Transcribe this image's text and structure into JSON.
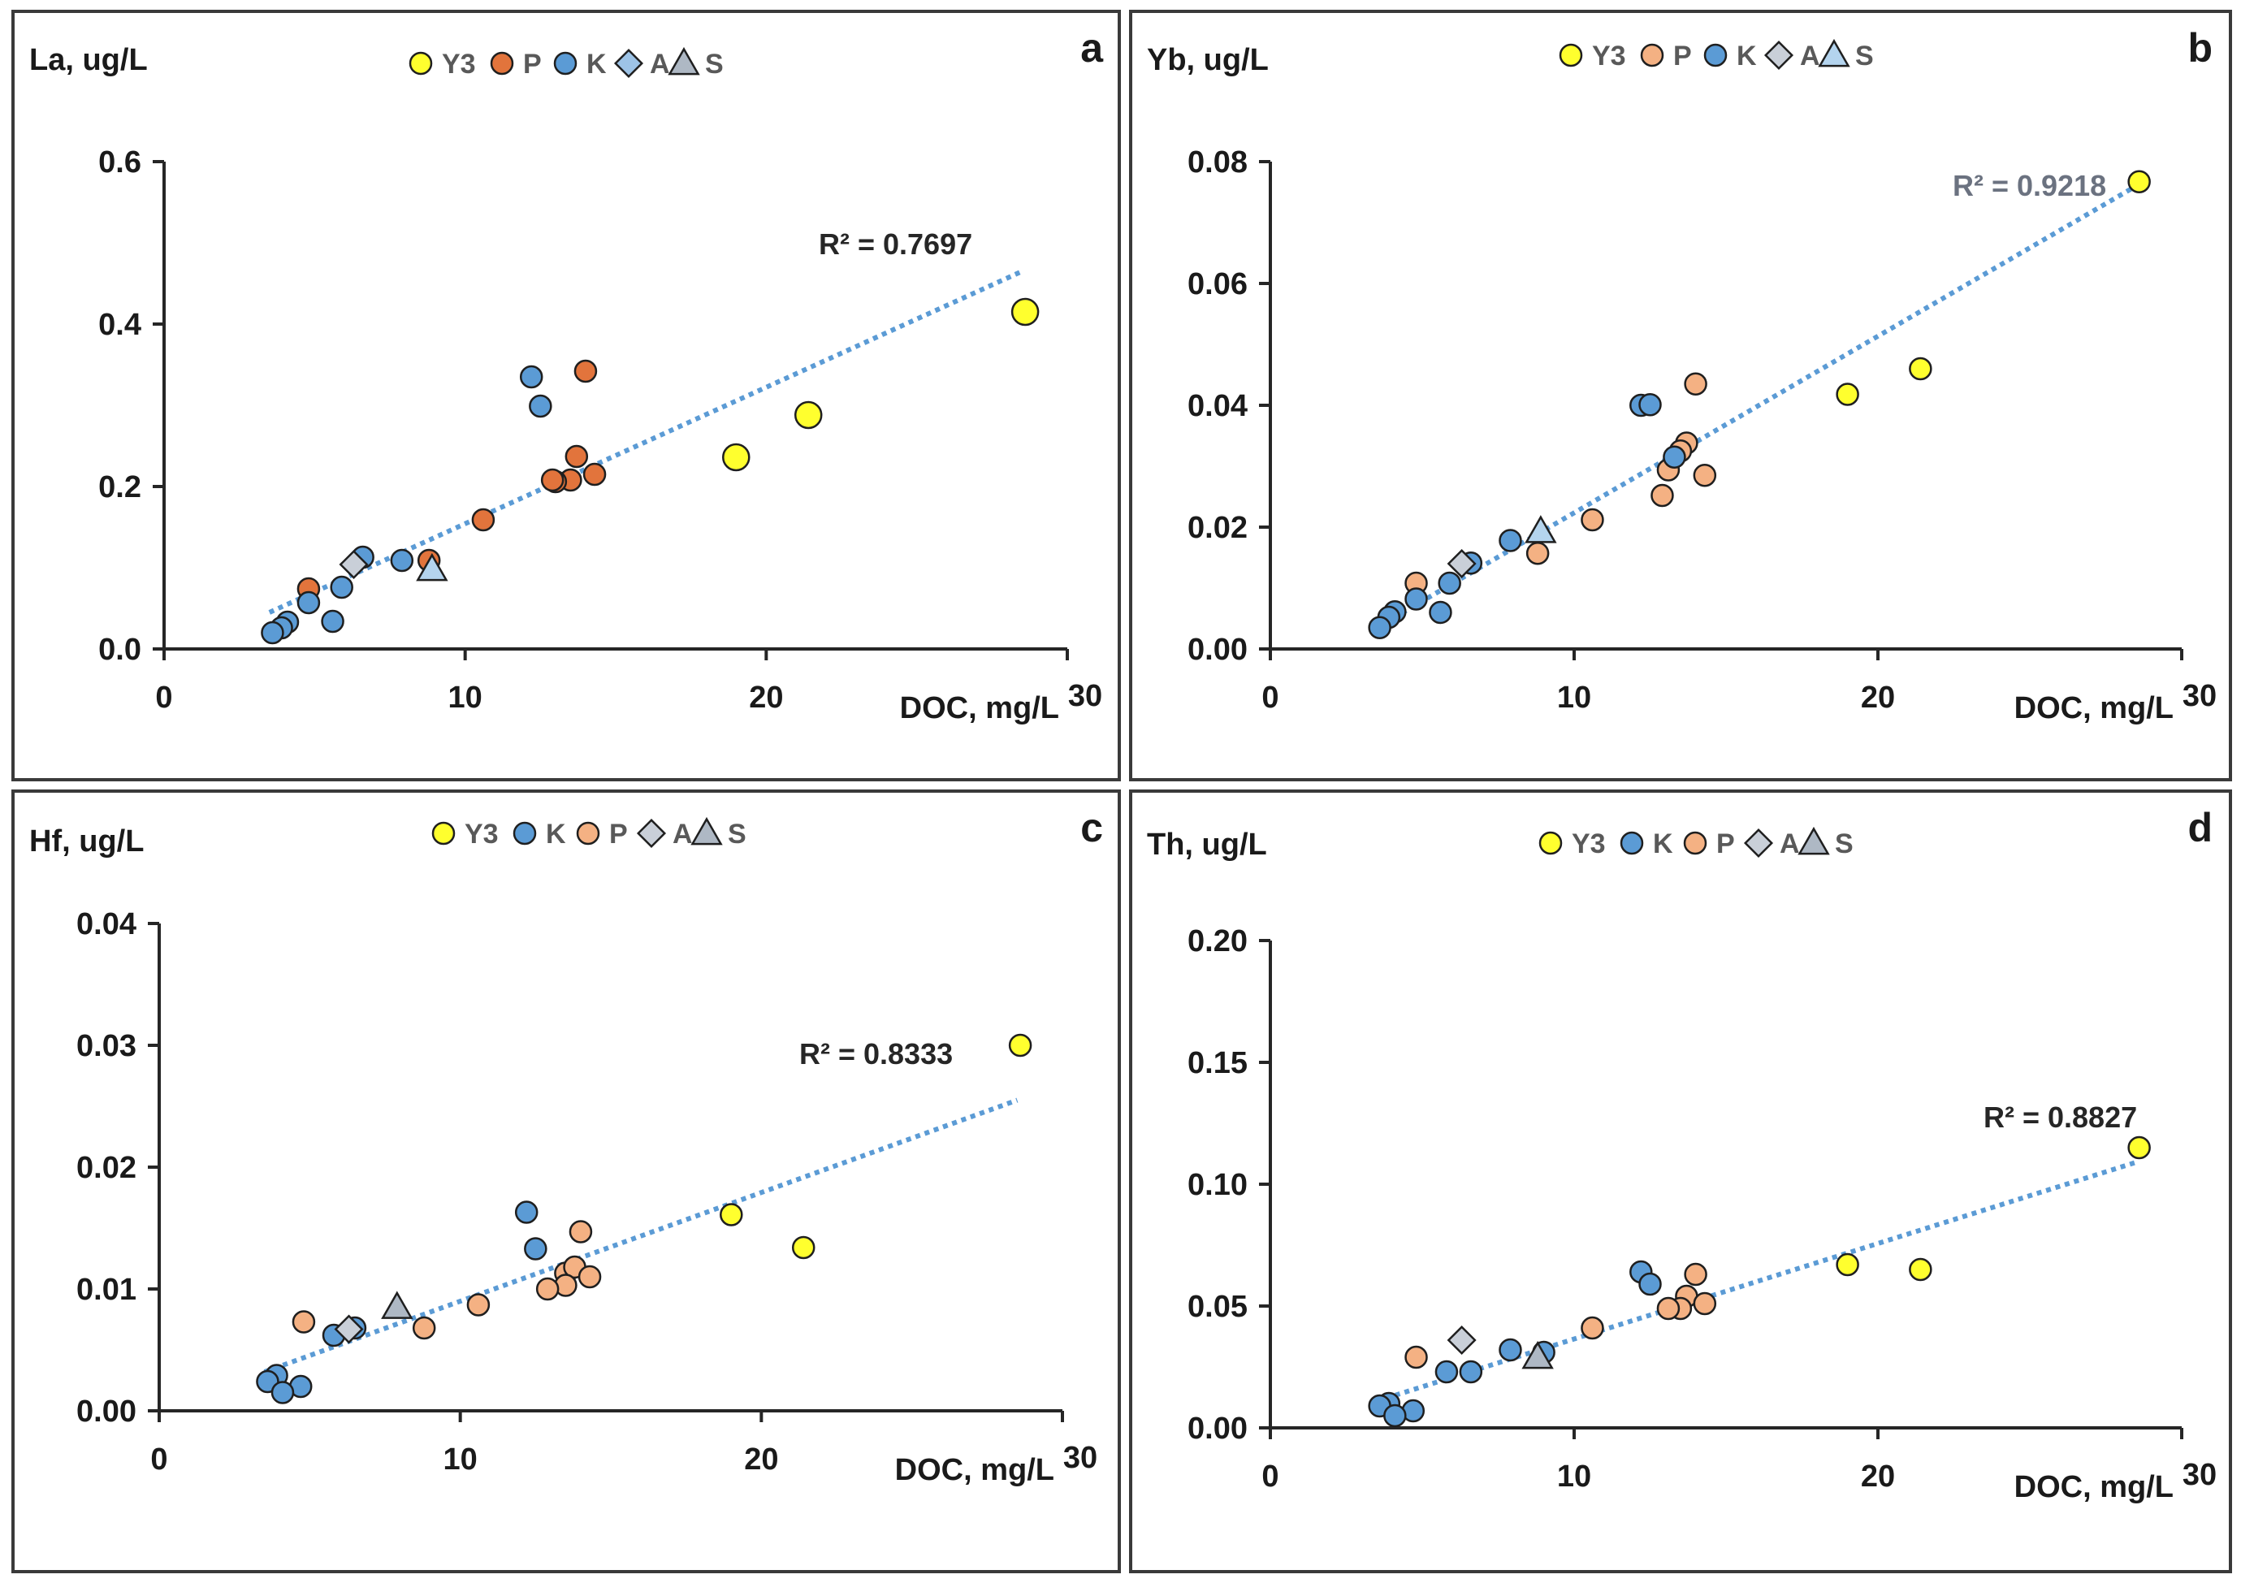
{
  "colors": {
    "Y3": "#ffff2e",
    "P_dark": "#e2743c",
    "P_light": "#f4b183",
    "K": "#5b9bd5",
    "A_blue": "#9dc3e6",
    "A_grey": "#c9cfd8",
    "S_blue": "#b4d4ee",
    "S_grey": "#aeb8c4",
    "trend": "#5b9bd5",
    "r2_dark": "#262626",
    "r2_grey": "#6b7280"
  },
  "chart_data": [
    {
      "id": "a",
      "type": "scatter",
      "panel_label": "a",
      "ylabel": "La, ug/L",
      "xlabel": "DOC, mg/L",
      "xlim": [
        0,
        30
      ],
      "ylim": [
        0,
        0.6
      ],
      "xticks": [
        "0",
        "10",
        "20",
        "30"
      ],
      "yticks": [
        "0.0",
        "0.2",
        "0.4",
        "0.6"
      ],
      "ytick_values": [
        0,
        0.2,
        0.4,
        0.6
      ],
      "legend": [
        {
          "label": "Y3",
          "marker": "circle",
          "color": "Y3"
        },
        {
          "label": "P",
          "marker": "circle",
          "color": "P_dark"
        },
        {
          "label": "K",
          "marker": "circle",
          "color": "K"
        },
        {
          "label": "A",
          "marker": "diamond",
          "color": "A_blue"
        },
        {
          "label": "S",
          "marker": "triangle",
          "color": "S_grey"
        }
      ],
      "r2_label": "R² = 0.7697",
      "r2_color": "r2_dark",
      "trendline": {
        "x": [
          3.5,
          28.5
        ],
        "y": [
          0.045,
          0.465
        ]
      },
      "series": [
        {
          "name": "Y3",
          "marker": "circle",
          "color": "Y3",
          "size": "large",
          "points": [
            [
              28.6,
              0.415
            ],
            [
              21.4,
              0.288
            ],
            [
              19.0,
              0.236
            ]
          ]
        },
        {
          "name": "P",
          "marker": "circle",
          "color": "P_dark",
          "points": [
            [
              14.0,
              0.342
            ],
            [
              13.7,
              0.237
            ],
            [
              14.3,
              0.215
            ],
            [
              13.5,
              0.208
            ],
            [
              13.0,
              0.206
            ],
            [
              12.9,
              0.208
            ],
            [
              10.6,
              0.159
            ],
            [
              8.8,
              0.109
            ],
            [
              4.8,
              0.074
            ]
          ]
        },
        {
          "name": "K",
          "marker": "circle",
          "color": "K",
          "points": [
            [
              12.2,
              0.335
            ],
            [
              12.5,
              0.299
            ],
            [
              6.6,
              0.113
            ],
            [
              7.9,
              0.109
            ],
            [
              5.9,
              0.076
            ],
            [
              4.8,
              0.057
            ],
            [
              5.6,
              0.034
            ],
            [
              4.1,
              0.033
            ],
            [
              3.9,
              0.026
            ],
            [
              3.6,
              0.02
            ]
          ]
        },
        {
          "name": "A",
          "marker": "diamond",
          "color": "A_grey",
          "points": [
            [
              6.3,
              0.104
            ]
          ]
        },
        {
          "name": "S",
          "marker": "triangle",
          "color": "S_blue",
          "points": [
            [
              8.9,
              0.098
            ]
          ]
        }
      ]
    },
    {
      "id": "b",
      "type": "scatter",
      "panel_label": "b",
      "ylabel": "Yb, ug/L",
      "xlabel": "DOC, mg/L",
      "xlim": [
        0,
        30
      ],
      "ylim": [
        0,
        0.08
      ],
      "xticks": [
        "0",
        "10",
        "20",
        "30"
      ],
      "yticks": [
        "0.00",
        "0.02",
        "0.04",
        "0.06",
        "0.08"
      ],
      "ytick_values": [
        0,
        0.02,
        0.04,
        0.06,
        0.08
      ],
      "legend": [
        {
          "label": "Y3",
          "marker": "circle",
          "color": "Y3"
        },
        {
          "label": "P",
          "marker": "circle",
          "color": "P_light"
        },
        {
          "label": "K",
          "marker": "circle",
          "color": "K"
        },
        {
          "label": "A",
          "marker": "diamond",
          "color": "A_grey"
        },
        {
          "label": "S",
          "marker": "triangle",
          "color": "S_blue"
        }
      ],
      "r2_label": "R² = 0.9218",
      "r2_color": "r2_grey",
      "trendline": {
        "x": [
          3.5,
          28.5
        ],
        "y": [
          0.0035,
          0.076
        ]
      },
      "series": [
        {
          "name": "Y3",
          "marker": "circle",
          "color": "Y3",
          "points": [
            [
              28.6,
              0.0767
            ],
            [
              21.4,
              0.046
            ],
            [
              19.0,
              0.0418
            ]
          ]
        },
        {
          "name": "P",
          "marker": "circle",
          "color": "P_light",
          "points": [
            [
              14.0,
              0.0435
            ],
            [
              13.7,
              0.0338
            ],
            [
              13.5,
              0.0325
            ],
            [
              13.1,
              0.0294
            ],
            [
              14.3,
              0.0285
            ],
            [
              12.9,
              0.0252
            ],
            [
              10.6,
              0.0212
            ],
            [
              8.8,
              0.0157
            ],
            [
              4.8,
              0.0108
            ]
          ]
        },
        {
          "name": "K",
          "marker": "circle",
          "color": "K",
          "points": [
            [
              12.2,
              0.04
            ],
            [
              12.5,
              0.0401
            ],
            [
              13.3,
              0.0315
            ],
            [
              7.9,
              0.0178
            ],
            [
              6.6,
              0.0141
            ],
            [
              5.9,
              0.0108
            ],
            [
              4.8,
              0.0082
            ],
            [
              5.6,
              0.006
            ],
            [
              4.1,
              0.0061
            ],
            [
              3.9,
              0.0052
            ],
            [
              3.6,
              0.0035
            ]
          ]
        },
        {
          "name": "A",
          "marker": "diamond",
          "color": "A_grey",
          "points": [
            [
              6.3,
              0.014
            ]
          ]
        },
        {
          "name": "S",
          "marker": "triangle",
          "color": "S_blue",
          "points": [
            [
              8.9,
              0.0193
            ]
          ]
        }
      ]
    },
    {
      "id": "c",
      "type": "scatter",
      "panel_label": "c",
      "ylabel": "Hf, ug/L",
      "xlabel": "DOC, mg/L",
      "xlim": [
        0,
        30
      ],
      "ylim": [
        0,
        0.04
      ],
      "xticks": [
        "0",
        "10",
        "20",
        "30"
      ],
      "yticks": [
        "0.00",
        "0.01",
        "0.02",
        "0.03",
        "0.04"
      ],
      "ytick_values": [
        0,
        0.01,
        0.02,
        0.03,
        0.04
      ],
      "legend": [
        {
          "label": "Y3",
          "marker": "circle",
          "color": "Y3"
        },
        {
          "label": "K",
          "marker": "circle",
          "color": "K"
        },
        {
          "label": "P",
          "marker": "circle",
          "color": "P_light"
        },
        {
          "label": "A",
          "marker": "diamond",
          "color": "A_grey"
        },
        {
          "label": "S",
          "marker": "triangle",
          "color": "S_grey"
        }
      ],
      "r2_label": "R² = 0.8333",
      "r2_color": "r2_dark",
      "trendline": {
        "x": [
          3.5,
          28.5
        ],
        "y": [
          0.0032,
          0.0255
        ]
      },
      "series": [
        {
          "name": "Y3",
          "marker": "circle",
          "color": "Y3",
          "points": [
            [
              28.6,
              0.03
            ],
            [
              19.0,
              0.0161
            ],
            [
              21.4,
              0.0134
            ]
          ]
        },
        {
          "name": "K",
          "marker": "circle",
          "color": "K",
          "points": [
            [
              12.2,
              0.0163
            ],
            [
              12.5,
              0.0133
            ],
            [
              5.8,
              0.0062
            ],
            [
              6.5,
              0.0068
            ],
            [
              3.9,
              0.0029
            ],
            [
              3.6,
              0.0024
            ],
            [
              4.7,
              0.002
            ],
            [
              4.1,
              0.0015
            ]
          ]
        },
        {
          "name": "P",
          "marker": "circle",
          "color": "P_light",
          "points": [
            [
              14.0,
              0.0147
            ],
            [
              13.5,
              0.0113
            ],
            [
              13.8,
              0.0118
            ],
            [
              14.3,
              0.011
            ],
            [
              13.5,
              0.0103
            ],
            [
              12.9,
              0.01
            ],
            [
              10.6,
              0.0087
            ],
            [
              4.8,
              0.0073
            ],
            [
              8.8,
              0.0068
            ]
          ]
        },
        {
          "name": "A",
          "marker": "diamond",
          "color": "A_grey",
          "points": [
            [
              6.3,
              0.0067
            ]
          ]
        },
        {
          "name": "S",
          "marker": "triangle",
          "color": "S_grey",
          "points": [
            [
              7.9,
              0.0085
            ]
          ]
        }
      ]
    },
    {
      "id": "d",
      "type": "scatter",
      "panel_label": "d",
      "ylabel": "Th, ug/L",
      "xlabel": "DOC, mg/L",
      "xlim": [
        0,
        30
      ],
      "ylim": [
        0,
        0.2
      ],
      "xticks": [
        "0",
        "10",
        "20",
        "30"
      ],
      "yticks": [
        "0.00",
        "0.05",
        "0.10",
        "0.15",
        "0.20"
      ],
      "ytick_values": [
        0,
        0.05,
        0.1,
        0.15,
        0.2
      ],
      "legend": [
        {
          "label": "Y3",
          "marker": "circle",
          "color": "Y3"
        },
        {
          "label": "K",
          "marker": "circle",
          "color": "K"
        },
        {
          "label": "P",
          "marker": "circle",
          "color": "P_light"
        },
        {
          "label": "A",
          "marker": "diamond",
          "color": "A_grey"
        },
        {
          "label": "S",
          "marker": "triangle",
          "color": "S_grey"
        }
      ],
      "r2_label": "R² = 0.8827",
      "r2_color": "r2_dark",
      "trendline": {
        "x": [
          3.5,
          28.5
        ],
        "y": [
          0.011,
          0.109
        ]
      },
      "series": [
        {
          "name": "Y3",
          "marker": "circle",
          "color": "Y3",
          "points": [
            [
              28.6,
              0.115
            ],
            [
              19.0,
              0.067
            ],
            [
              21.4,
              0.065
            ]
          ]
        },
        {
          "name": "K",
          "marker": "circle",
          "color": "K",
          "points": [
            [
              12.2,
              0.064
            ],
            [
              12.5,
              0.059
            ],
            [
              7.9,
              0.032
            ],
            [
              9.0,
              0.031
            ],
            [
              5.8,
              0.023
            ],
            [
              6.6,
              0.023
            ],
            [
              3.9,
              0.01
            ],
            [
              3.6,
              0.009
            ],
            [
              4.7,
              0.007
            ],
            [
              4.1,
              0.005
            ]
          ]
        },
        {
          "name": "P",
          "marker": "circle",
          "color": "P_light",
          "points": [
            [
              14.0,
              0.063
            ],
            [
              13.7,
              0.054
            ],
            [
              13.5,
              0.049
            ],
            [
              14.3,
              0.051
            ],
            [
              13.1,
              0.049
            ],
            [
              10.6,
              0.041
            ],
            [
              4.8,
              0.029
            ]
          ]
        },
        {
          "name": "A",
          "marker": "diamond",
          "color": "A_grey",
          "points": [
            [
              6.3,
              0.036
            ]
          ]
        },
        {
          "name": "S",
          "marker": "triangle",
          "color": "S_grey",
          "points": [
            [
              8.8,
              0.029
            ]
          ]
        }
      ]
    }
  ]
}
